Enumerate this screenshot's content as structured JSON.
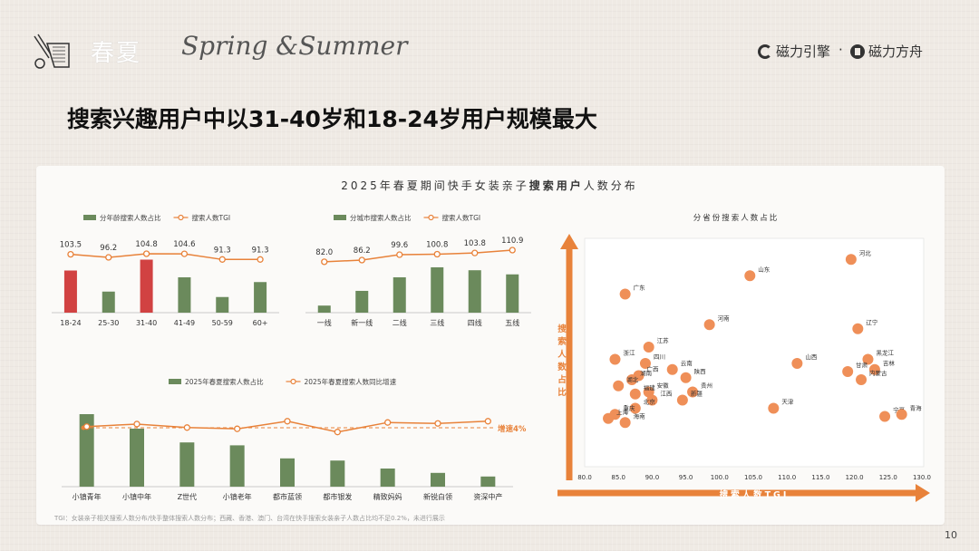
{
  "header": {
    "cn_title": "春夏",
    "en_title": "Spring &Summer",
    "brands": [
      "磁力引擎",
      "·",
      "磁力方舟"
    ]
  },
  "page_title": "搜索兴趣用户中以31-40岁和18-24岁用户规模最大",
  "card_title": {
    "pre": "2025年春夏期间快手女装亲子",
    "bold": "搜索用户",
    "post": "人数分布"
  },
  "colors": {
    "bar": "#6b8a5c",
    "highlight": "#d14242",
    "line": "#e8823a",
    "dot": "#ef8f58"
  },
  "chart_data": [
    {
      "type": "bar",
      "id": "age",
      "legend": [
        "分年龄搜索人数占比",
        "搜索人数TGI"
      ],
      "categories": [
        "18-24",
        "25-30",
        "31-40",
        "41-49",
        "50-59",
        "60+"
      ],
      "bar_values": [
        0.62,
        0.31,
        0.78,
        0.52,
        0.23,
        0.45
      ],
      "highlight": [
        true,
        false,
        true,
        false,
        false,
        false
      ],
      "tgi": [
        103.5,
        96.2,
        104.8,
        104.6,
        91.3,
        91.3
      ]
    },
    {
      "type": "bar",
      "id": "city",
      "legend": [
        "分城市搜索人数占比",
        "搜索人数TGI"
      ],
      "categories": [
        "一线",
        "新一线",
        "二线",
        "三线",
        "四线",
        "五线"
      ],
      "bar_values": [
        0.12,
        0.37,
        0.6,
        0.77,
        0.72,
        0.65
      ],
      "tgi": [
        82.0,
        86.2,
        99.6,
        100.8,
        103.8,
        110.9
      ]
    },
    {
      "type": "bar",
      "id": "crowd",
      "legend": [
        "2025年春夏搜索人数占比",
        "2025年春夏搜索人数同比增速"
      ],
      "categories": [
        "小镇青年",
        "小镇中年",
        "Z世代",
        "小镇老年",
        "都市蓝领",
        "都市银发",
        "精致妈妈",
        "新锐白领",
        "资深中产"
      ],
      "bar_values": [
        1.0,
        0.8,
        0.61,
        0.57,
        0.39,
        0.36,
        0.25,
        0.19,
        0.14
      ],
      "growth": [
        0.55,
        0.63,
        0.52,
        0.48,
        0.72,
        0.38,
        0.68,
        0.65,
        0.72
      ],
      "annotation": "增速4%"
    },
    {
      "type": "scatter",
      "id": "province",
      "title": "分省份搜索人数占比",
      "xlabel": "搜索人数TGI",
      "ylabel": "搜索人数占比",
      "xlim": [
        80,
        130
      ],
      "xticks": [
        "80.0",
        "85.0",
        "90.0",
        "95.0",
        "100.0",
        "105.0",
        "110.0",
        "115.0",
        "120.0",
        "125.0",
        "130.0"
      ],
      "points": [
        {
          "name": "河北",
          "x": 119.5,
          "y": 0.95
        },
        {
          "name": "山东",
          "x": 104.5,
          "y": 0.87
        },
        {
          "name": "广东",
          "x": 86.0,
          "y": 0.78
        },
        {
          "name": "河南",
          "x": 98.5,
          "y": 0.63
        },
        {
          "name": "辽宁",
          "x": 120.5,
          "y": 0.61
        },
        {
          "name": "江苏",
          "x": 89.5,
          "y": 0.52
        },
        {
          "name": "浙江",
          "x": 84.5,
          "y": 0.46
        },
        {
          "name": "山西",
          "x": 111.5,
          "y": 0.44
        },
        {
          "name": "黑龙江",
          "x": 122.0,
          "y": 0.46
        },
        {
          "name": "四川",
          "x": 89.0,
          "y": 0.44
        },
        {
          "name": "云南",
          "x": 93.0,
          "y": 0.41
        },
        {
          "name": "吉林",
          "x": 123.0,
          "y": 0.41
        },
        {
          "name": "广西",
          "x": 88.0,
          "y": 0.38
        },
        {
          "name": "湖南",
          "x": 87.0,
          "y": 0.36
        },
        {
          "name": "陕西",
          "x": 95.0,
          "y": 0.37
        },
        {
          "name": "甘肃",
          "x": 119.0,
          "y": 0.4
        },
        {
          "name": "内蒙古",
          "x": 121.0,
          "y": 0.36
        },
        {
          "name": "湖北",
          "x": 85.0,
          "y": 0.33
        },
        {
          "name": "安徽",
          "x": 89.5,
          "y": 0.3
        },
        {
          "name": "贵州",
          "x": 96.0,
          "y": 0.3
        },
        {
          "name": "福建",
          "x": 87.5,
          "y": 0.29
        },
        {
          "name": "江西",
          "x": 90.0,
          "y": 0.26
        },
        {
          "name": "北京",
          "x": 87.5,
          "y": 0.22
        },
        {
          "name": "新疆",
          "x": 94.5,
          "y": 0.26
        },
        {
          "name": "天津",
          "x": 108.0,
          "y": 0.22
        },
        {
          "name": "重庆",
          "x": 84.5,
          "y": 0.19
        },
        {
          "name": "上海",
          "x": 83.5,
          "y": 0.17
        },
        {
          "name": "海南",
          "x": 86.0,
          "y": 0.15
        },
        {
          "name": "宁夏",
          "x": 124.5,
          "y": 0.18
        },
        {
          "name": "青海",
          "x": 127.0,
          "y": 0.19
        }
      ]
    }
  ],
  "footnote": "TGI：女装亲子相关搜索人数分布/快手整体搜索人数分布；西藏、香港、澳门、台湾在快手搜索女装亲子人数占比均不足0.2%，未进行展示",
  "page_number": "10"
}
